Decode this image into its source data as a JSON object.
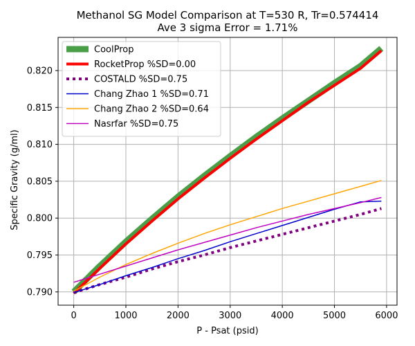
{
  "chart_data": {
    "type": "line",
    "title_line1": "Methanol SG Model Comparison at T=530 R, Tr=0.574414",
    "title_line2": "Ave 3 sigma Error = 1.71%",
    "xlabel": "P - Psat (psid)",
    "ylabel": "Specific Gravity (g/ml)",
    "xlim": [
      -300,
      6200
    ],
    "ylim": [
      0.7882,
      0.8245
    ],
    "xticks": [
      0,
      1000,
      2000,
      3000,
      4000,
      5000,
      6000
    ],
    "xtick_labels": [
      "0",
      "1000",
      "2000",
      "3000",
      "4000",
      "5000",
      "6000"
    ],
    "yticks": [
      0.79,
      0.795,
      0.8,
      0.805,
      0.81,
      0.815,
      0.82
    ],
    "ytick_labels": [
      "0.790",
      "0.795",
      "0.800",
      "0.805",
      "0.810",
      "0.815",
      "0.820"
    ],
    "grid": true,
    "legend_position": "upper-left",
    "series": [
      {
        "name": "CoolProp",
        "color": "#4a9e47",
        "style": "solid-thick",
        "x": [
          0,
          500,
          1000,
          1500,
          2000,
          2500,
          3000,
          3500,
          4000,
          4500,
          5000,
          5500,
          5900
        ],
        "y": [
          0.79,
          0.7935,
          0.7968,
          0.7999,
          0.8029,
          0.8057,
          0.8084,
          0.811,
          0.8135,
          0.8159,
          0.8183,
          0.8206,
          0.823
        ]
      },
      {
        "name": "RocketProp %SD=0.00",
        "color": "#ff0000",
        "style": "solid-medium",
        "x": [
          0,
          500,
          1000,
          1500,
          2000,
          2500,
          3000,
          3500,
          4000,
          4500,
          5000,
          5500,
          5900
        ],
        "y": [
          0.7898,
          0.7932,
          0.7965,
          0.7996,
          0.8026,
          0.8054,
          0.8081,
          0.8107,
          0.8132,
          0.8157,
          0.818,
          0.8203,
          0.8227
        ]
      },
      {
        "name": "COSTALD %SD=0.75",
        "color": "#800080",
        "style": "dotted",
        "x": [
          0,
          500,
          1000,
          1500,
          2000,
          2500,
          3000,
          3500,
          4000,
          4500,
          5000,
          5500,
          5900
        ],
        "y": [
          0.7899,
          0.791,
          0.792,
          0.7931,
          0.7941,
          0.795,
          0.796,
          0.7969,
          0.7978,
          0.7987,
          0.7996,
          0.8005,
          0.8013
        ]
      },
      {
        "name": "Chang Zhao 1 %SD=0.71",
        "color": "#0000cc",
        "style": "solid-thin",
        "x": [
          0,
          500,
          1000,
          1500,
          2000,
          2500,
          3000,
          3500,
          4000,
          4500,
          5000,
          5500,
          5900
        ],
        "y": [
          0.7899,
          0.791,
          0.7922,
          0.7933,
          0.7945,
          0.7956,
          0.7968,
          0.7979,
          0.799,
          0.8001,
          0.8012,
          0.8022,
          0.8023
        ]
      },
      {
        "name": "Chang Zhao 2 %SD=0.64",
        "color": "#ffa500",
        "style": "solid-thin",
        "x": [
          0,
          500,
          1000,
          1500,
          2000,
          2500,
          3000,
          3500,
          4000,
          4500,
          5000,
          5500,
          5900
        ],
        "y": [
          0.7901,
          0.792,
          0.7937,
          0.7952,
          0.7966,
          0.7979,
          0.7991,
          0.8002,
          0.8013,
          0.8023,
          0.8033,
          0.8043,
          0.8051
        ]
      },
      {
        "name": "Nasrfar %SD=0.75",
        "color": "#c000c0",
        "style": "solid-thin",
        "x": [
          0,
          500,
          1000,
          1500,
          2000,
          2500,
          3000,
          3500,
          4000,
          4500,
          5000,
          5500,
          5900
        ],
        "y": [
          0.7913,
          0.7924,
          0.7935,
          0.7946,
          0.7957,
          0.7967,
          0.7977,
          0.7987,
          0.7996,
          0.8005,
          0.8013,
          0.8021,
          0.8028
        ]
      }
    ]
  }
}
